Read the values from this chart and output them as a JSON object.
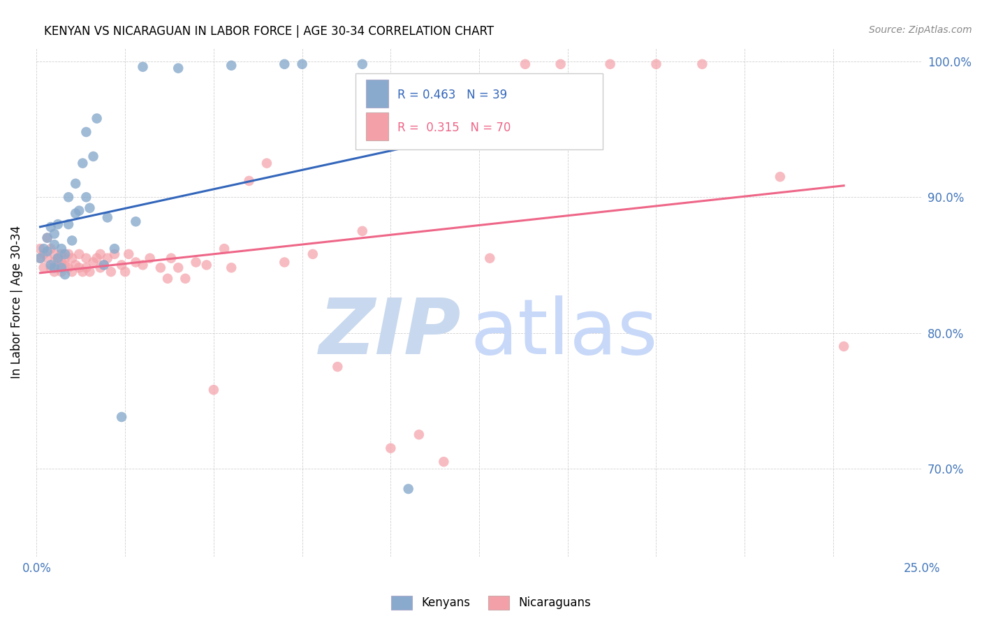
{
  "title": "KENYAN VS NICARAGUAN IN LABOR FORCE | AGE 30-34 CORRELATION CHART",
  "source_text": "Source: ZipAtlas.com",
  "ylabel": "In Labor Force | Age 30-34",
  "xlim": [
    0.0,
    0.25
  ],
  "ylim": [
    0.635,
    1.01
  ],
  "xtick_positions": [
    0.0,
    0.025,
    0.05,
    0.075,
    0.1,
    0.125,
    0.15,
    0.175,
    0.2,
    0.225,
    0.25
  ],
  "ytick_positions": [
    0.7,
    0.8,
    0.9,
    1.0
  ],
  "ytick_labels": [
    "70.0%",
    "80.0%",
    "90.0%",
    "100.0%"
  ],
  "blue_color": "#89AACC",
  "pink_color": "#F4A0A8",
  "blue_line_color": "#3366BB",
  "pink_line_color": "#EE6688",
  "tick_label_color": "#4477BB",
  "blue_points_x": [
    0.001,
    0.002,
    0.003,
    0.003,
    0.004,
    0.004,
    0.005,
    0.005,
    0.005,
    0.006,
    0.006,
    0.007,
    0.007,
    0.008,
    0.008,
    0.009,
    0.009,
    0.01,
    0.011,
    0.011,
    0.012,
    0.013,
    0.014,
    0.014,
    0.015,
    0.016,
    0.017,
    0.019,
    0.02,
    0.022,
    0.024,
    0.028,
    0.03,
    0.04,
    0.055,
    0.07,
    0.075,
    0.092,
    0.105
  ],
  "blue_points_y": [
    0.855,
    0.862,
    0.87,
    0.86,
    0.878,
    0.85,
    0.865,
    0.873,
    0.848,
    0.88,
    0.855,
    0.848,
    0.862,
    0.858,
    0.843,
    0.9,
    0.88,
    0.868,
    0.888,
    0.91,
    0.89,
    0.925,
    0.948,
    0.9,
    0.892,
    0.93,
    0.958,
    0.85,
    0.885,
    0.862,
    0.738,
    0.882,
    0.996,
    0.995,
    0.997,
    0.998,
    0.998,
    0.998,
    0.685
  ],
  "pink_points_x": [
    0.001,
    0.001,
    0.002,
    0.002,
    0.003,
    0.003,
    0.004,
    0.004,
    0.005,
    0.005,
    0.005,
    0.006,
    0.006,
    0.007,
    0.007,
    0.007,
    0.008,
    0.008,
    0.009,
    0.009,
    0.01,
    0.01,
    0.011,
    0.012,
    0.012,
    0.013,
    0.014,
    0.014,
    0.015,
    0.016,
    0.017,
    0.018,
    0.018,
    0.019,
    0.02,
    0.021,
    0.022,
    0.024,
    0.025,
    0.026,
    0.028,
    0.03,
    0.032,
    0.035,
    0.037,
    0.038,
    0.04,
    0.042,
    0.045,
    0.048,
    0.05,
    0.053,
    0.055,
    0.06,
    0.065,
    0.07,
    0.078,
    0.085,
    0.092,
    0.1,
    0.108,
    0.115,
    0.128,
    0.138,
    0.148,
    0.162,
    0.175,
    0.188,
    0.21,
    0.228
  ],
  "pink_points_y": [
    0.862,
    0.855,
    0.858,
    0.848,
    0.87,
    0.855,
    0.848,
    0.862,
    0.852,
    0.858,
    0.845,
    0.855,
    0.848,
    0.852,
    0.858,
    0.845,
    0.85,
    0.855,
    0.848,
    0.858,
    0.845,
    0.855,
    0.85,
    0.848,
    0.858,
    0.845,
    0.855,
    0.848,
    0.845,
    0.852,
    0.855,
    0.848,
    0.858,
    0.85,
    0.855,
    0.845,
    0.858,
    0.85,
    0.845,
    0.858,
    0.852,
    0.85,
    0.855,
    0.848,
    0.84,
    0.855,
    0.848,
    0.84,
    0.852,
    0.85,
    0.758,
    0.862,
    0.848,
    0.912,
    0.925,
    0.852,
    0.858,
    0.775,
    0.875,
    0.715,
    0.725,
    0.705,
    0.855,
    0.998,
    0.998,
    0.998,
    0.998,
    0.998,
    0.915,
    0.79
  ],
  "watermark_zip_color": "#C8D8EE",
  "watermark_atlas_color": "#C8D8F8"
}
